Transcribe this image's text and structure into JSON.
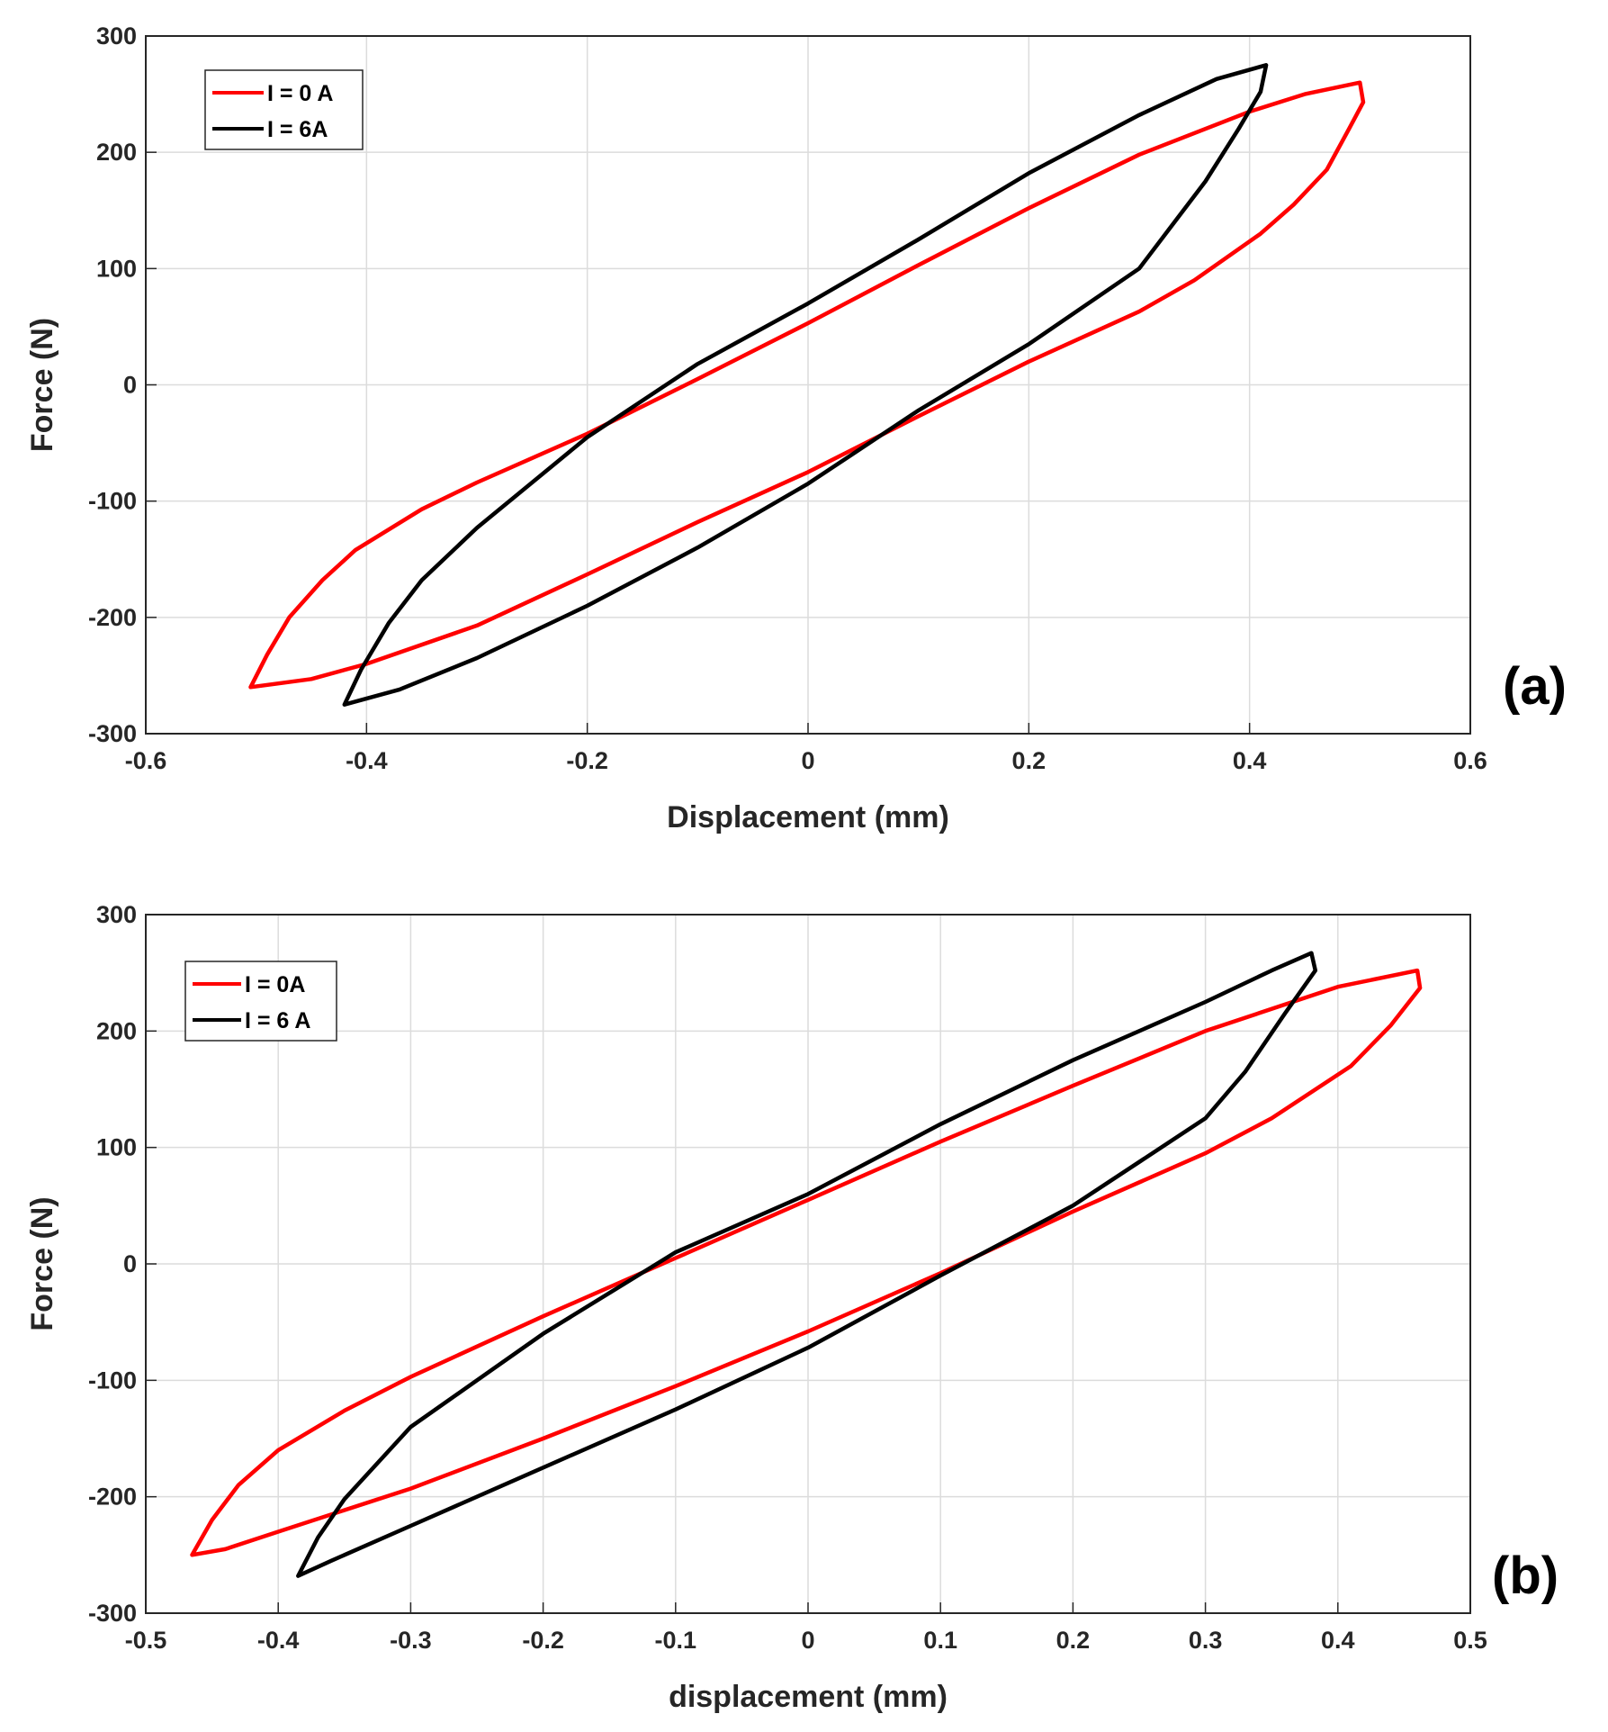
{
  "charts": [
    {
      "type": "line",
      "panel_label": "(a)",
      "xlabel": "Displacement (mm)",
      "ylabel": "Force (N)",
      "xlim": [
        -0.6,
        0.6
      ],
      "ylim": [
        -300,
        300
      ],
      "xticks": [
        -0.6,
        -0.4,
        -0.2,
        0,
        0.2,
        0.4,
        0.6
      ],
      "yticks": [
        -300,
        -200,
        -100,
        0,
        100,
        200,
        300
      ],
      "xtick_labels": [
        "-0.6",
        "-0.4",
        "-0.2",
        "0",
        "0.2",
        "0.4",
        "0.6"
      ],
      "ytick_labels": [
        "-300",
        "-200",
        "-100",
        "0",
        "100",
        "200",
        "300"
      ],
      "grid": true,
      "legend_position": "top-left",
      "series": [
        {
          "name": "I = 0 A",
          "color": "#ff0000",
          "points": [
            [
              -0.505,
              -260
            ],
            [
              -0.49,
              -232
            ],
            [
              -0.47,
              -200
            ],
            [
              -0.44,
              -168
            ],
            [
              -0.41,
              -142
            ],
            [
              -0.35,
              -107
            ],
            [
              -0.3,
              -84
            ],
            [
              -0.2,
              -42
            ],
            [
              -0.1,
              5
            ],
            [
              0,
              53
            ],
            [
              0.1,
              103
            ],
            [
              0.2,
              152
            ],
            [
              0.3,
              198
            ],
            [
              0.4,
              235
            ],
            [
              0.45,
              250
            ],
            [
              0.5,
              260
            ],
            [
              0.503,
              243
            ],
            [
              0.49,
              220
            ],
            [
              0.47,
              185
            ],
            [
              0.44,
              155
            ],
            [
              0.41,
              130
            ],
            [
              0.35,
              90
            ],
            [
              0.3,
              63
            ],
            [
              0.2,
              20
            ],
            [
              0.1,
              -27
            ],
            [
              0,
              -75
            ],
            [
              -0.1,
              -118
            ],
            [
              -0.2,
              -163
            ],
            [
              -0.3,
              -207
            ],
            [
              -0.4,
              -240
            ],
            [
              -0.45,
              -253
            ],
            [
              -0.505,
              -260
            ]
          ]
        },
        {
          "name": "I = 6A",
          "color": "#000000",
          "points": [
            [
              -0.42,
              -275
            ],
            [
              -0.405,
              -245
            ],
            [
              -0.38,
              -205
            ],
            [
              -0.35,
              -168
            ],
            [
              -0.3,
              -123
            ],
            [
              -0.2,
              -45
            ],
            [
              -0.1,
              18
            ],
            [
              0,
              70
            ],
            [
              0.1,
              125
            ],
            [
              0.2,
              182
            ],
            [
              0.3,
              232
            ],
            [
              0.37,
              263
            ],
            [
              0.415,
              275
            ],
            [
              0.41,
              252
            ],
            [
              0.39,
              220
            ],
            [
              0.36,
              175
            ],
            [
              0.3,
              100
            ],
            [
              0.2,
              35
            ],
            [
              0.1,
              -22
            ],
            [
              0,
              -85
            ],
            [
              -0.1,
              -140
            ],
            [
              -0.2,
              -190
            ],
            [
              -0.3,
              -235
            ],
            [
              -0.37,
              -262
            ],
            [
              -0.42,
              -275
            ]
          ]
        }
      ]
    },
    {
      "type": "line",
      "panel_label": "(b)",
      "xlabel": "displacement (mm)",
      "ylabel": "Force (N)",
      "xlim": [
        -0.5,
        0.5
      ],
      "ylim": [
        -300,
        300
      ],
      "xticks": [
        -0.5,
        -0.4,
        -0.3,
        -0.2,
        -0.1,
        0,
        0.1,
        0.2,
        0.3,
        0.4,
        0.5
      ],
      "yticks": [
        -300,
        -200,
        -100,
        0,
        100,
        200,
        300
      ],
      "xtick_labels": [
        "-0.5",
        "-0.4",
        "-0.3",
        "-0.2",
        "-0.1",
        "0",
        "0.1",
        "0.2",
        "0.3",
        "0.4",
        "0.5"
      ],
      "ytick_labels": [
        "-300",
        "-200",
        "-100",
        "0",
        "100",
        "200",
        "300"
      ],
      "grid": true,
      "legend_position": "top-left",
      "series": [
        {
          "name": "I = 0A",
          "color": "#ff0000",
          "points": [
            [
              -0.465,
              -250
            ],
            [
              -0.45,
              -220
            ],
            [
              -0.43,
              -190
            ],
            [
              -0.4,
              -160
            ],
            [
              -0.35,
              -126
            ],
            [
              -0.3,
              -97
            ],
            [
              -0.2,
              -45
            ],
            [
              -0.1,
              5
            ],
            [
              0,
              55
            ],
            [
              0.1,
              105
            ],
            [
              0.2,
              153
            ],
            [
              0.3,
              200
            ],
            [
              0.4,
              238
            ],
            [
              0.46,
              252
            ],
            [
              0.462,
              237
            ],
            [
              0.44,
              205
            ],
            [
              0.41,
              170
            ],
            [
              0.35,
              125
            ],
            [
              0.3,
              95
            ],
            [
              0.2,
              45
            ],
            [
              0.1,
              -8
            ],
            [
              0,
              -58
            ],
            [
              -0.1,
              -105
            ],
            [
              -0.2,
              -150
            ],
            [
              -0.3,
              -193
            ],
            [
              -0.4,
              -230
            ],
            [
              -0.44,
              -245
            ],
            [
              -0.465,
              -250
            ]
          ]
        },
        {
          "name": "I = 6 A",
          "color": "#000000",
          "points": [
            [
              -0.385,
              -268
            ],
            [
              -0.37,
              -235
            ],
            [
              -0.35,
              -202
            ],
            [
              -0.3,
              -140
            ],
            [
              -0.2,
              -60
            ],
            [
              -0.1,
              10
            ],
            [
              0,
              60
            ],
            [
              0.1,
              120
            ],
            [
              0.2,
              175
            ],
            [
              0.3,
              225
            ],
            [
              0.35,
              252
            ],
            [
              0.38,
              267
            ],
            [
              0.383,
              252
            ],
            [
              0.36,
              215
            ],
            [
              0.33,
              165
            ],
            [
              0.3,
              125
            ],
            [
              0.2,
              50
            ],
            [
              0.1,
              -10
            ],
            [
              0,
              -72
            ],
            [
              -0.1,
              -125
            ],
            [
              -0.2,
              -175
            ],
            [
              -0.3,
              -225
            ],
            [
              -0.36,
              -255
            ],
            [
              -0.385,
              -268
            ]
          ]
        }
      ]
    }
  ]
}
